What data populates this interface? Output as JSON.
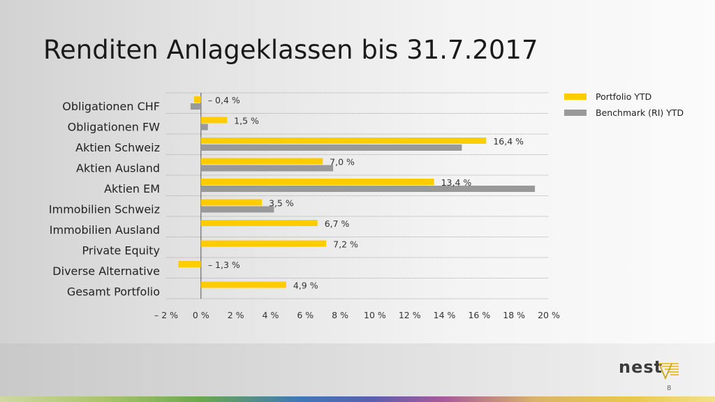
{
  "slide": {
    "title": "Renditen Anlageklassen bis 31.7.2017",
    "page_number": "8",
    "logo_text": "nest"
  },
  "colors": {
    "portfolio": "#FFCC00",
    "benchmark": "#999999",
    "grid": "#a8a8a8"
  },
  "legend": [
    {
      "label": "Portfolio YTD",
      "color": "#FFCC00"
    },
    {
      "label": "Benchmark (RI) YTD",
      "color": "#999999"
    }
  ],
  "chart_data": {
    "type": "bar",
    "orientation": "horizontal",
    "categories": [
      "Obligationen CHF",
      "Obligationen FW",
      "Aktien Schweiz",
      "Aktien Ausland",
      "Aktien EM",
      "Immobilien Schweiz",
      "Immobilien Ausland",
      "Private Equity",
      "Diverse Alternative",
      "Gesamt Portfolio"
    ],
    "series": [
      {
        "name": "Portfolio YTD",
        "values": [
          -0.4,
          1.5,
          16.4,
          7.0,
          13.4,
          3.5,
          6.7,
          7.2,
          -1.3,
          4.9
        ]
      },
      {
        "name": "Benchmark (RI) YTD",
        "values": [
          -0.6,
          0.4,
          15.0,
          7.6,
          19.2,
          4.2,
          null,
          null,
          null,
          null
        ]
      }
    ],
    "data_labels": [
      "– 0,4 %",
      "1,5 %",
      "16,4 %",
      "7,0 %",
      "13,4 %",
      "3,5 %",
      "6,7 %",
      "7,2 %",
      "– 1,3 %",
      "4,9 %"
    ],
    "xlim": [
      -2,
      20
    ],
    "x_ticks": [
      -2,
      0,
      2,
      4,
      6,
      8,
      10,
      12,
      14,
      16,
      18,
      20
    ],
    "x_tick_labels": [
      "– 2 %",
      "0 %",
      "2 %",
      "4 %",
      "6 %",
      "8 %",
      "10 %",
      "12 %",
      "14 %",
      "16 %",
      "18 %",
      "20 %"
    ],
    "grid": true,
    "legend_position": "top-right"
  }
}
